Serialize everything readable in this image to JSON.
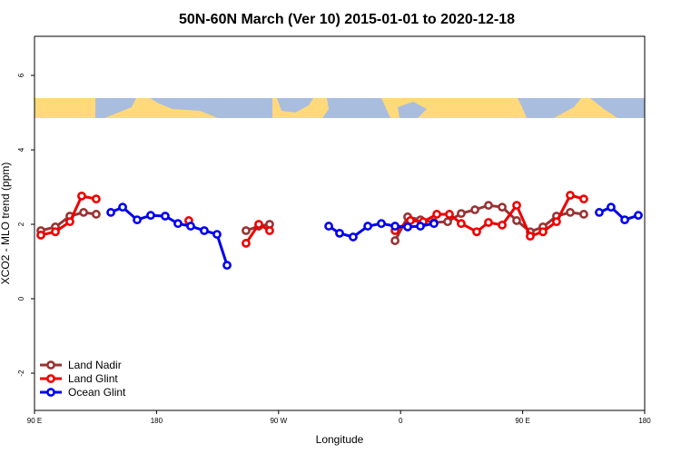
{
  "chart_data": {
    "type": "line",
    "title": "50N-60N March (Ver 10)   2015-01-01 to 2020-12-18",
    "x_label": "Longitude",
    "y_label": "XCO2 - MLO trend (ppm)",
    "xlim": [
      90,
      540
    ],
    "ylim": [
      -3,
      7.05
    ],
    "xticks": [
      {
        "value": 90,
        "label": "90 E"
      },
      180,
      {
        "value": 270,
        "label": "90 W"
      },
      {
        "value": 360,
        "label": "0"
      },
      {
        "value": 450,
        "label": "90 E"
      },
      {
        "value": 540,
        "label": "180"
      }
    ],
    "yticks": [
      -2,
      0,
      2,
      4,
      6
    ],
    "legend": "bottomleft",
    "series": [
      {
        "name": "Land Nadir",
        "color": "#993333",
        "x": [
          94.7,
          105.4,
          116.1,
          126.2,
          135.5,
          null,
          246.0,
          255.4,
          263.4,
          null,
          355.9,
          365.2,
          374.6,
          384.6,
          394.7,
          404.7,
          414.8,
          424.8,
          434.9,
          445.6,
          455.6,
          465.0,
          475.0,
          485.1,
          495.1
        ],
        "values": [
          1.83,
          1.93,
          2.22,
          2.32,
          2.27,
          null,
          1.83,
          1.95,
          2.0,
          null,
          1.56,
          2.2,
          2.12,
          2.05,
          2.07,
          2.29,
          2.39,
          2.51,
          2.46,
          2.1,
          1.8,
          1.93,
          2.22,
          2.32,
          2.27
        ]
      },
      {
        "name": "Land Glint",
        "color": "#ee0000",
        "x": [
          94.7,
          105.4,
          116.1,
          124.8,
          135.5,
          null,
          203.8,
          null,
          246.0,
          255.4,
          263.4,
          null,
          355.9,
          367.2,
          376.6,
          386.7,
          396.0,
          404.7,
          416.1,
          424.8,
          434.9,
          445.6,
          455.6,
          465.0,
          475.0,
          485.1,
          495.1
        ],
        "values": [
          1.71,
          1.8,
          2.07,
          2.76,
          2.68,
          null,
          2.1,
          null,
          1.49,
          2.0,
          1.83,
          null,
          1.83,
          2.1,
          2.07,
          2.27,
          2.27,
          2.02,
          1.8,
          2.05,
          1.98,
          2.51,
          1.68,
          1.8,
          2.07,
          2.78,
          2.68
        ]
      },
      {
        "name": "Ocean Glint",
        "color": "#0000ee",
        "x": [
          146.3,
          155.0,
          165.7,
          175.7,
          186.4,
          195.8,
          205.2,
          215.2,
          224.6,
          232.0,
          null,
          307.0,
          315.0,
          325.0,
          335.8,
          345.8,
          355.9,
          365.2,
          374.6,
          384.6,
          null,
          506.5,
          515.2,
          525.3,
          535.3
        ],
        "values": [
          2.32,
          2.46,
          2.12,
          2.24,
          2.22,
          2.02,
          1.95,
          1.83,
          1.73,
          0.9,
          null,
          1.95,
          1.76,
          1.66,
          1.95,
          2.02,
          1.95,
          1.93,
          1.95,
          2.02,
          null,
          2.32,
          2.46,
          2.12,
          2.24
        ]
      }
    ]
  }
}
